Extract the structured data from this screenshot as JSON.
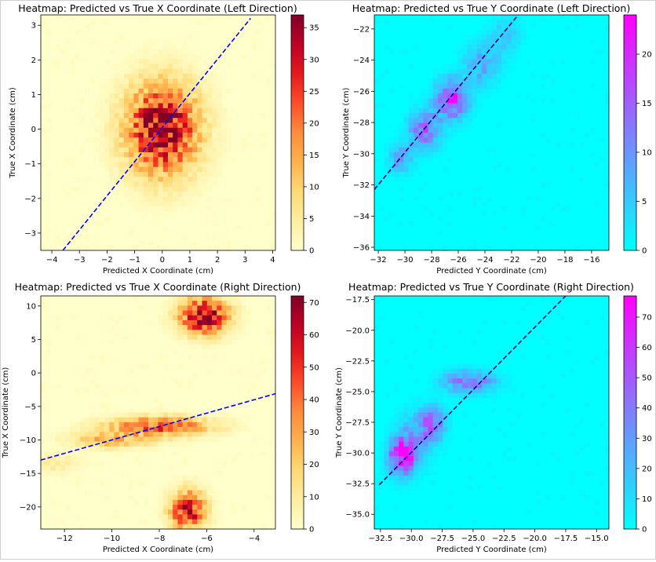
{
  "chart_data": [
    {
      "type": "heatmap",
      "title": "Heatmap: Predicted vs True X Coordinate (Left Direction)",
      "xlabel": "Predicted X Coordinate (cm)",
      "ylabel": "True X Coordinate (cm)",
      "xlim": [
        -4.4,
        4.1
      ],
      "ylim": [
        -3.5,
        3.3
      ],
      "xticks": [
        -4,
        -3,
        -2,
        -1,
        0,
        1,
        2,
        3,
        4
      ],
      "yticks": [
        -3,
        -2,
        -1,
        0,
        1,
        2,
        3
      ],
      "colormap": "YlOrRd",
      "colors": [
        "#ffffcc",
        "#ffeda0",
        "#fed976",
        "#feb24c",
        "#fd8d3c",
        "#fc4e2a",
        "#e31a1c",
        "#bd0026",
        "#800026"
      ],
      "colorbar": {
        "min": 0,
        "max": 37,
        "ticks": [
          0,
          5,
          10,
          15,
          20,
          25,
          30,
          35
        ]
      },
      "clusters": [
        {
          "center": [
            0.0,
            0.0
          ],
          "spread": [
            0.9,
            0.9
          ],
          "peak": 35
        }
      ],
      "reference_line": {
        "x": [
          -3.6,
          3.2
        ],
        "y": [
          -3.5,
          3.2
        ],
        "color": "#0000ff",
        "style": "dashed"
      }
    },
    {
      "type": "heatmap",
      "title": "Heatmap: Predicted vs True Y Coordinate (Left Direction)",
      "xlabel": "Predicted Y Coordinate (cm)",
      "ylabel": "True Y Coordinate (cm)",
      "xlim": [
        -32.3,
        -14.7
      ],
      "ylim": [
        -36.2,
        -21.1
      ],
      "xticks": [
        -32,
        -30,
        -28,
        -26,
        -24,
        -22,
        -20,
        -18,
        -16
      ],
      "yticks": [
        -36,
        -34,
        -32,
        -30,
        -28,
        -26,
        -24,
        -22
      ],
      "colormap": "cool",
      "colors": [
        "#00ffff",
        "#ff00ff"
      ],
      "colorbar": {
        "min": 0,
        "max": 24,
        "ticks": [
          0,
          5,
          10,
          15,
          20
        ]
      },
      "clusters": [
        {
          "center": [
            -26.5,
            -26.5
          ],
          "spread": [
            0.8,
            0.8
          ],
          "peak": 22
        },
        {
          "center": [
            -28.5,
            -28.5
          ],
          "spread": [
            0.8,
            0.8
          ],
          "peak": 14
        },
        {
          "center": [
            -30.3,
            -30.3
          ],
          "spread": [
            0.6,
            0.6
          ],
          "peak": 10
        },
        {
          "center": [
            -24.3,
            -24.3
          ],
          "spread": [
            0.9,
            0.9
          ],
          "peak": 8
        },
        {
          "center": [
            -22.5,
            -22.5
          ],
          "spread": [
            0.8,
            0.8
          ],
          "peak": 5
        }
      ],
      "reference_line": {
        "x": [
          -32.3,
          -21.5
        ],
        "y": [
          -32.3,
          -21.1
        ],
        "color": "#00008b",
        "style": "dashed"
      }
    },
    {
      "type": "heatmap",
      "title": "Heatmap: Predicted vs True X Coordinate (Right Direction)",
      "xlabel": "Predicted X Coordinate (cm)",
      "ylabel": "True X Coordinate (cm)",
      "xlim": [
        -13.0,
        -3.1
      ],
      "ylim": [
        -23.3,
        11.5
      ],
      "xticks": [
        -12,
        -10,
        -8,
        -6,
        -4
      ],
      "yticks": [
        -20,
        -15,
        -10,
        -5,
        0,
        5,
        10
      ],
      "colormap": "YlOrRd",
      "colors": [
        "#ffffcc",
        "#ffeda0",
        "#fed976",
        "#feb24c",
        "#fd8d3c",
        "#fc4e2a",
        "#e31a1c",
        "#bd0026",
        "#800026"
      ],
      "colorbar": {
        "min": 0,
        "max": 72,
        "ticks": [
          0,
          10,
          20,
          30,
          40,
          50,
          60,
          70
        ]
      },
      "clusters": [
        {
          "center": [
            -6.1,
            8.5
          ],
          "spread": [
            0.7,
            1.8
          ],
          "peak": 70
        },
        {
          "center": [
            -6.8,
            -20.5
          ],
          "spread": [
            0.5,
            2.0
          ],
          "peak": 60
        },
        {
          "center": [
            -8.0,
            -8.0
          ],
          "spread": [
            1.5,
            1.0
          ],
          "peak": 45
        },
        {
          "center": [
            -10.0,
            -10.0
          ],
          "spread": [
            1.2,
            0.8
          ],
          "peak": 25
        },
        {
          "center": [
            -12.5,
            -13.5
          ],
          "spread": [
            0.8,
            1.0
          ],
          "peak": 10
        }
      ],
      "reference_line": {
        "x": [
          -13.0,
          -3.1
        ],
        "y": [
          -13.0,
          -3.1
        ],
        "color": "#0000ff",
        "style": "dashed"
      }
    },
    {
      "type": "heatmap",
      "title": "Heatmap: Predicted vs True Y Coordinate (Right Direction)",
      "xlabel": "Predicted Y Coordinate (cm)",
      "ylabel": "True Y Coordinate (cm)",
      "xlim": [
        -33.0,
        -14.0
      ],
      "ylim": [
        -36.2,
        -17.2
      ],
      "xticks": [
        -32.5,
        -30.0,
        -27.5,
        -25.0,
        -22.5,
        -20.0,
        -17.5,
        -15.0
      ],
      "yticks": [
        -35.0,
        -32.5,
        -30.0,
        -27.5,
        -25.0,
        -22.5,
        -20.0,
        -17.5
      ],
      "colormap": "cool",
      "colors": [
        "#00ffff",
        "#ff00ff"
      ],
      "colorbar": {
        "min": 0,
        "max": 77,
        "ticks": [
          0,
          10,
          20,
          30,
          40,
          50,
          60,
          70
        ]
      },
      "clusters": [
        {
          "center": [
            -30.8,
            -30.3
          ],
          "spread": [
            0.7,
            1.0
          ],
          "peak": 70
        },
        {
          "center": [
            -28.3,
            -27.6
          ],
          "spread": [
            0.7,
            0.9
          ],
          "peak": 50
        },
        {
          "center": [
            -25.3,
            -24.2
          ],
          "spread": [
            1.4,
            0.6
          ],
          "peak": 45
        },
        {
          "center": [
            -29.8,
            -29.0
          ],
          "spread": [
            0.9,
            1.5
          ],
          "peak": 25
        }
      ],
      "reference_line": {
        "x": [
          -32.6,
          -17.5
        ],
        "y": [
          -32.6,
          -17.2
        ],
        "color": "#00008b",
        "style": "dashed"
      }
    }
  ]
}
